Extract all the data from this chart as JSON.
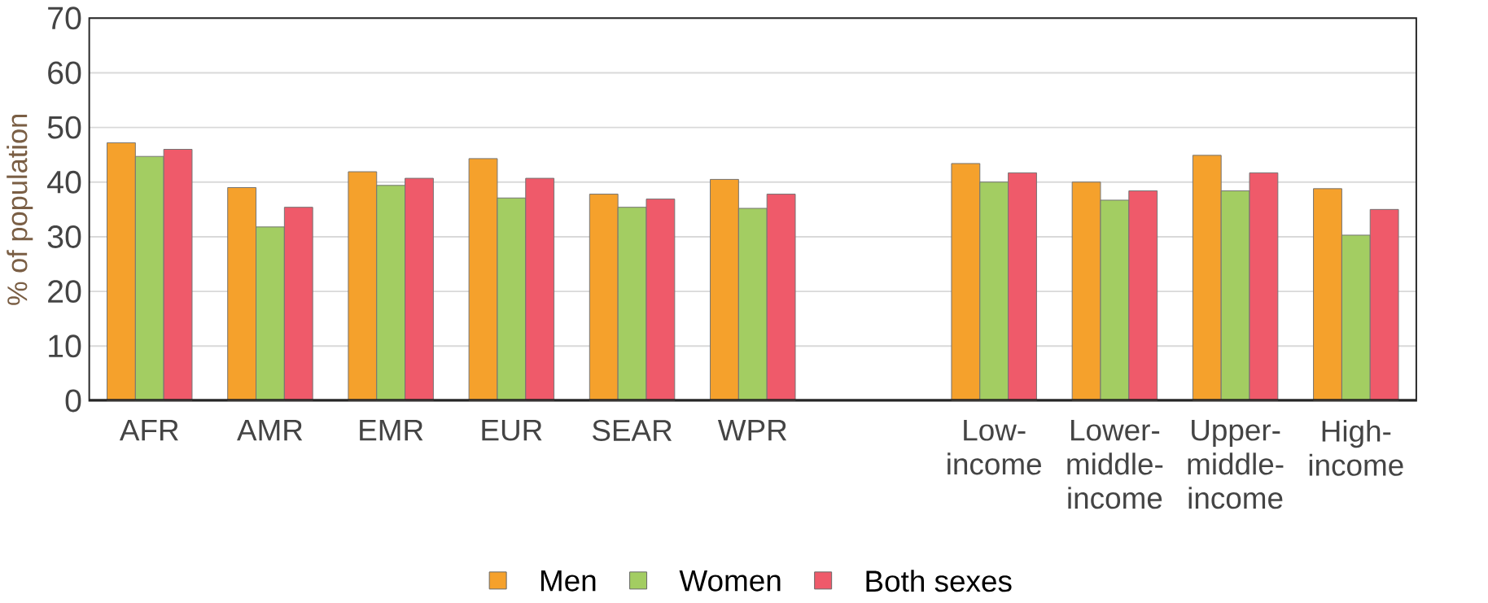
{
  "chart_data": {
    "type": "bar",
    "ylabel": "% of population",
    "categories": [
      "AFR",
      "AMR",
      "EMR",
      "EUR",
      "SEAR",
      "WPR",
      null,
      "Low-income",
      "Lower-middle-income",
      "Upper-middle-income",
      "High-income"
    ],
    "series": [
      {
        "name": "Men",
        "color": "#f5a12c",
        "values": [
          47.2,
          39.0,
          41.9,
          44.3,
          37.8,
          40.5,
          null,
          43.4,
          40.0,
          44.9,
          38.8
        ]
      },
      {
        "name": "Women",
        "color": "#a3cd62",
        "values": [
          44.7,
          31.8,
          39.4,
          37.1,
          35.4,
          35.2,
          null,
          40.0,
          36.7,
          38.4,
          30.3
        ]
      },
      {
        "name": "Both sexes",
        "color": "#ef5a6a",
        "values": [
          46.0,
          35.4,
          40.7,
          40.7,
          36.9,
          37.8,
          null,
          41.7,
          38.4,
          41.7,
          35.0
        ]
      }
    ],
    "ylim": [
      0,
      70
    ],
    "yticks": [
      0,
      10,
      20,
      30,
      40,
      50,
      60,
      70
    ],
    "grid": "y",
    "legend": "bottom"
  }
}
